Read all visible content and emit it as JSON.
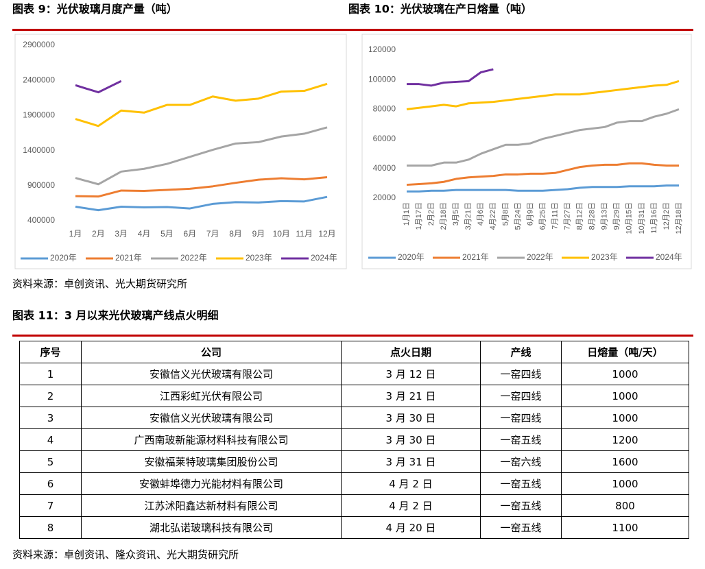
{
  "chart_data": [
    {
      "type": "line",
      "title": "图表 9：光伏玻璃月度产量（吨）",
      "categories": [
        "1月",
        "2月",
        "3月",
        "4月",
        "5月",
        "6月",
        "7月",
        "8月",
        "9月",
        "10月",
        "11月",
        "12月"
      ],
      "ylim": [
        400000,
        2900000
      ],
      "yticks": [
        400000,
        900000,
        1400000,
        1900000,
        2400000,
        2900000
      ],
      "legend": "bottom",
      "series": [
        {
          "name": "2020年",
          "color": "#5b9bd5",
          "values": [
            600000,
            550000,
            600000,
            590000,
            595000,
            575000,
            640000,
            665000,
            660000,
            680000,
            675000,
            740000
          ]
        },
        {
          "name": "2021年",
          "color": "#ed7d31",
          "values": [
            750000,
            745000,
            830000,
            825000,
            840000,
            855000,
            890000,
            940000,
            985000,
            1005000,
            990000,
            1020000
          ]
        },
        {
          "name": "2022年",
          "color": "#a5a5a5",
          "values": [
            1010000,
            920000,
            1100000,
            1140000,
            1210000,
            1310000,
            1410000,
            1500000,
            1520000,
            1600000,
            1640000,
            1730000
          ]
        },
        {
          "name": "2023年",
          "color": "#ffc000",
          "values": [
            1850000,
            1750000,
            1970000,
            1940000,
            2050000,
            2050000,
            2170000,
            2110000,
            2140000,
            2240000,
            2250000,
            2350000
          ]
        },
        {
          "name": "2024年",
          "color": "#7030a0",
          "values": [
            2330000,
            2230000,
            2390000,
            null,
            null,
            null,
            null,
            null,
            null,
            null,
            null,
            null
          ]
        }
      ]
    },
    {
      "type": "line",
      "title": "图表 10：光伏玻璃在产日熔量（吨）",
      "categories": [
        "1月1日",
        "1月17日",
        "2月2日",
        "2月18日",
        "3月5日",
        "3月21日",
        "4月6日",
        "4月22日",
        "5月8日",
        "5月24日",
        "6月9日",
        "6月25日",
        "7月11日",
        "7月27日",
        "8月12日",
        "8月28日",
        "9月13日",
        "9月29日",
        "10月15日",
        "10月31日",
        "11月16日",
        "12月2日",
        "12月18日"
      ],
      "ylim": [
        20000,
        120000
      ],
      "yticks": [
        20000,
        40000,
        60000,
        80000,
        100000,
        120000
      ],
      "legend": "bottom",
      "series": [
        {
          "name": "2020年",
          "color": "#5b9bd5",
          "values": [
            24500,
            24500,
            25000,
            25000,
            25500,
            25500,
            25500,
            25500,
            25500,
            25000,
            25000,
            25000,
            25500,
            26000,
            27000,
            27500,
            27500,
            27500,
            28000,
            28000,
            28000,
            28500,
            28500
          ]
        },
        {
          "name": "2021年",
          "color": "#ed7d31",
          "values": [
            29000,
            29500,
            30000,
            31000,
            33000,
            34000,
            34500,
            35000,
            36000,
            36000,
            36500,
            36500,
            37000,
            39000,
            41000,
            42000,
            42500,
            42500,
            43500,
            43500,
            42500,
            42000,
            42000
          ]
        },
        {
          "name": "2022年",
          "color": "#a5a5a5",
          "values": [
            42000,
            42000,
            42000,
            44000,
            44000,
            46000,
            50000,
            53000,
            56000,
            56000,
            57000,
            60000,
            62000,
            64000,
            66000,
            67000,
            68000,
            71000,
            72000,
            72000,
            75000,
            77000,
            80000
          ]
        },
        {
          "name": "2023年",
          "color": "#ffc000",
          "values": [
            80000,
            81000,
            82000,
            83000,
            82000,
            84000,
            84500,
            85000,
            86000,
            87000,
            88000,
            89000,
            90000,
            90000,
            90000,
            91000,
            92000,
            93000,
            94000,
            95000,
            96000,
            96500,
            99000
          ]
        },
        {
          "name": "2024年",
          "color": "#7030a0",
          "values": [
            97000,
            97000,
            96000,
            98000,
            98500,
            99000,
            105000,
            107000,
            null,
            null,
            null,
            null,
            null,
            null,
            null,
            null,
            null,
            null,
            null,
            null,
            null,
            null,
            null
          ]
        }
      ]
    }
  ],
  "source1": "资料来源：卓创资讯、光大期货研究所",
  "table_title": "图表 11：3 月以来光伏玻璃产线点火明细",
  "table": {
    "header": [
      "序号",
      "公司",
      "点火日期",
      "产线",
      "日熔量（吨/天）"
    ],
    "rows": [
      [
        "1",
        "安徽信义光伏玻璃有限公司",
        "3 月 12 日",
        "一窑四线",
        "1000"
      ],
      [
        "2",
        "江西彩虹光伏有限公司",
        "3 月 21 日",
        "一窑四线",
        "1000"
      ],
      [
        "3",
        "安徽信义光伏玻璃有限公司",
        "3 月 30 日",
        "一窑四线",
        "1000"
      ],
      [
        "4",
        "广西南玻新能源材料科技有限公司",
        "3 月 30 日",
        "一窑五线",
        "1200"
      ],
      [
        "5",
        "安徽福莱特玻璃集团股份公司",
        "3 月 31 日",
        "一窑六线",
        "1600"
      ],
      [
        "6",
        "安徽蚌埠德力光能材料有限公司",
        "4 月 2 日",
        "一窑五线",
        "1000"
      ],
      [
        "7",
        "江苏沭阳鑫达新材料有限公司",
        "4 月 2 日",
        "一窑五线",
        "800"
      ],
      [
        "8",
        "湖北弘诺玻璃科技有限公司",
        "4 月 20 日",
        "一窑五线",
        "1100"
      ]
    ]
  },
  "source2": "资料来源：卓创资讯、隆众资讯、光大期货研究所"
}
